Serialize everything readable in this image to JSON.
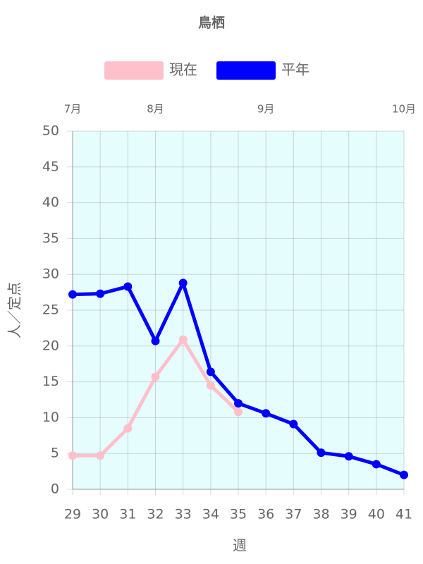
{
  "chart_data": {
    "type": "line",
    "title": "鳥栖",
    "categories": [
      "29",
      "30",
      "31",
      "32",
      "33",
      "34",
      "35",
      "36",
      "37",
      "38",
      "39",
      "40",
      "41"
    ],
    "top_labels": [
      "7月",
      null,
      null,
      "8月",
      null,
      null,
      null,
      "9月",
      null,
      null,
      null,
      null,
      "10月"
    ],
    "xlabel": "週",
    "ylabel": "人／定点",
    "series": [
      {
        "name": "現在",
        "color": "#ffc0cb",
        "values": [
          4.7,
          4.7,
          8.5,
          15.7,
          20.9,
          14.5,
          10.8,
          null,
          null,
          null,
          null,
          null,
          null
        ]
      },
      {
        "name": "平年",
        "color": "#0000ff",
        "values": [
          27.2,
          27.3,
          28.3,
          20.7,
          28.8,
          16.4,
          12.0,
          10.6,
          9.1,
          5.1,
          4.6,
          3.5,
          2.0
        ]
      }
    ],
    "ylim": [
      0,
      50
    ],
    "yticks": [
      0,
      5,
      10,
      15,
      20,
      25,
      30,
      35,
      40,
      45,
      50
    ],
    "grid": true,
    "background": "#e6fdfd"
  }
}
